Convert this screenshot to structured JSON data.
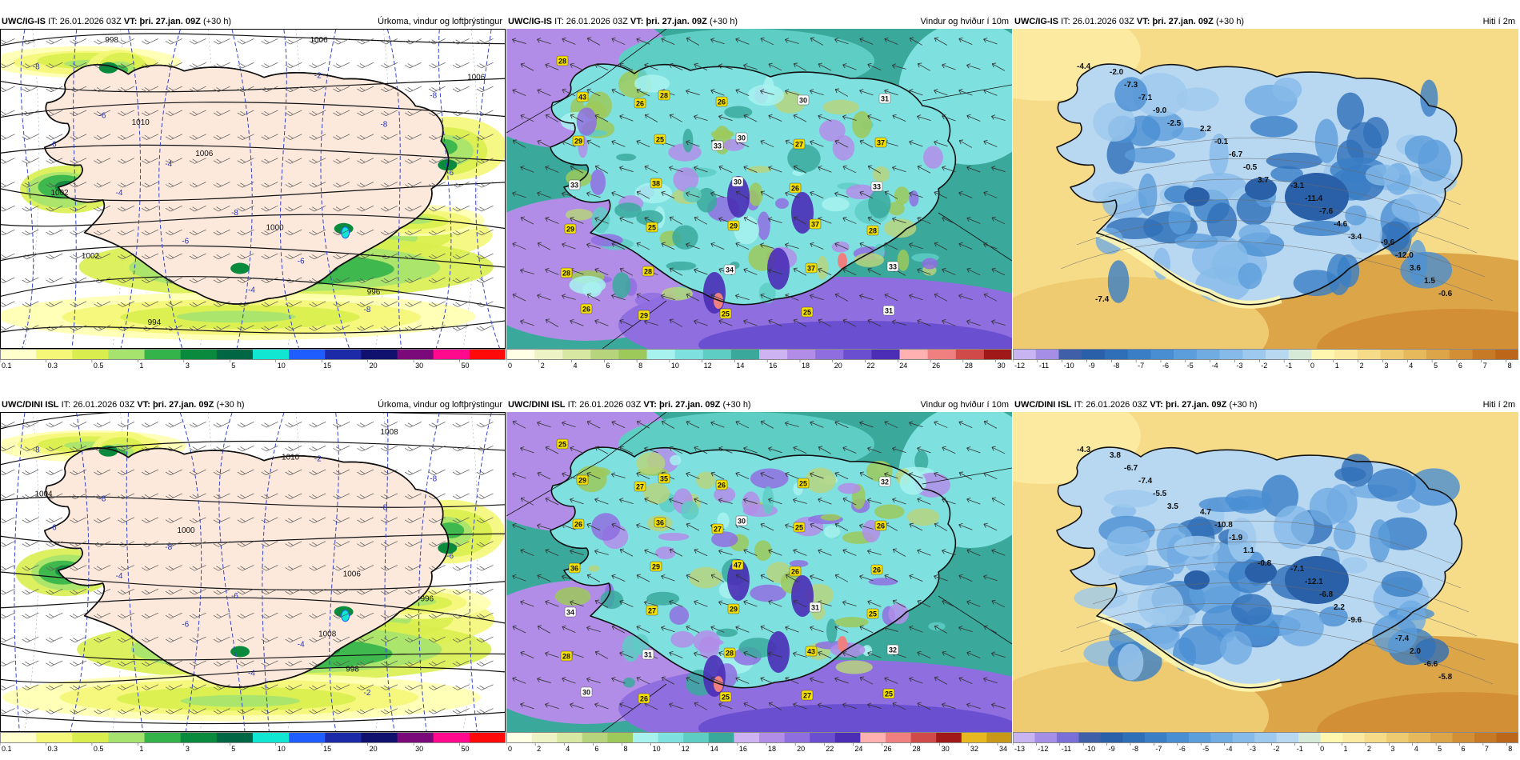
{
  "rows": [
    {
      "panels": [
        {
          "model": "UWC/IG-IS",
          "it_label": "IT:",
          "it_value": "26.01.2026 03Z",
          "vt_label": "VT:",
          "vt_value": "þri. 27.jan. 09Z",
          "lead": "(+30 h)",
          "title": "Úrkoma, vindur og loftþrýstingur",
          "colorbar": {
            "labels": [
              "0.1",
              "0.3",
              "0.5",
              "1",
              "3",
              "5",
              "10",
              "15",
              "20",
              "30",
              "50"
            ],
            "colors": [
              "#ffffcc",
              "#f4f777",
              "#d9ee4e",
              "#a6e36e",
              "#33b34a",
              "#0a8a3c",
              "#006644",
              "#11e6d2",
              "#1f5dff",
              "#1d2aa8",
              "#10106e",
              "#7a0a7a",
              "#ff0a8c",
              "#ff0a0a"
            ]
          },
          "map": {
            "kind": "precip",
            "isobar_labels": [
              "1006",
              "1006",
              "1010",
              "1006",
              "1002",
              "1000",
              "1002",
              "996",
              "994",
              "998"
            ],
            "temp_labels": [
              "-8",
              "-6",
              "-4",
              "-8",
              "-6",
              "-8",
              "-8",
              "-6",
              "-4",
              "-6",
              "-4",
              "-2",
              "-8",
              "-6"
            ]
          }
        },
        {
          "model": "UWC/IG-IS",
          "it_label": "IT:",
          "it_value": "26.01.2026 03Z",
          "vt_label": "VT:",
          "vt_value": "þri. 27.jan. 09Z",
          "lead": "(+30 h)",
          "title": "Vindur og hviður í 10m",
          "colorbar": {
            "labels": [
              "0",
              "2",
              "4",
              "6",
              "8",
              "10",
              "12",
              "14",
              "16",
              "18",
              "20",
              "22",
              "24",
              "26",
              "28",
              "30"
            ],
            "colors": [
              "#ffffe5",
              "#eef3c6",
              "#d6e8a2",
              "#b6d47c",
              "#9cc95a",
              "#a7f2ee",
              "#7fe0e0",
              "#5ecdc4",
              "#3aa99c",
              "#cdb3f2",
              "#b28de8",
              "#8f6ee0",
              "#6a4fd1",
              "#4b2db6",
              "#ffb0b0",
              "#f08080",
              "#d04a4a",
              "#a01818"
            ]
          },
          "map": {
            "kind": "wind",
            "gust_labels": [
              "28",
              "26",
              "33",
              "26",
              "28",
              "28",
              "29",
              "26",
              "27",
              "33",
              "29",
              "28",
              "25",
              "30",
              "37",
              "33",
              "25",
              "34",
              "25",
              "31",
              "29",
              "38",
              "29",
              "37",
              "31",
              "43",
              "25",
              "30",
              "37",
              "33",
              "26",
              "28",
              "30"
            ]
          }
        },
        {
          "model": "UWC/IG-IS",
          "it_label": "IT:",
          "it_value": "26.01.2026 03Z",
          "vt_label": "VT:",
          "vt_value": "þri. 27.jan. 09Z",
          "lead": "(+30 h)",
          "title": "Hiti í 2m",
          "colorbar": {
            "labels": [
              "-12",
              "-11",
              "-10",
              "-9",
              "-8",
              "-7",
              "-6",
              "-5",
              "-4",
              "-3",
              "-2",
              "-1",
              "0",
              "1",
              "2",
              "3",
              "4",
              "5",
              "6",
              "7",
              "8"
            ],
            "colors": [
              "#c8b4f0",
              "#a58ee6",
              "#3f5fa8",
              "#2a60a8",
              "#2f6fb8",
              "#3a7ec6",
              "#4a8ed2",
              "#5c9ddb",
              "#70abe2",
              "#86bae8",
              "#9ec9ee",
              "#b8d8f2",
              "#d6ead8",
              "#fff6b0",
              "#fbeaa0",
              "#f6db88",
              "#eecb70",
              "#e6b95c",
              "#dca548",
              "#d28f36",
              "#c77a26",
              "#bb6618"
            ]
          },
          "map": {
            "kind": "temp",
            "temp_labels": [
              "-4.4",
              "-2.5",
              "3.7",
              "-3.4",
              "-0.6",
              "-9.0",
              "-0.5",
              "-4.6",
              "1.5",
              "-7.1",
              "-6.7",
              "-7.6",
              "3.6",
              "-7.3",
              "-0.1",
              "-11.4",
              "-12.0",
              "-2.0",
              "2.2",
              "-3.1",
              "-9.6",
              "-7.4"
            ]
          }
        }
      ]
    },
    {
      "panels": [
        {
          "model": "UWC/DINI ISL",
          "it_label": "IT:",
          "it_value": "26.01.2026 03Z",
          "vt_label": "VT:",
          "vt_value": "þri. 27.jan. 09Z",
          "lead": "(+30 h)",
          "title": "Úrkoma, vindur og loftþrýstingur",
          "colorbar": {
            "labels": [
              "0.1",
              "0.3",
              "0.5",
              "1",
              "3",
              "5",
              "10",
              "15",
              "20",
              "30",
              "50"
            ],
            "colors": [
              "#ffffcc",
              "#f4f777",
              "#d9ee4e",
              "#a6e36e",
              "#33b34a",
              "#0a8a3c",
              "#006644",
              "#11e6d2",
              "#1f5dff",
              "#1d2aa8",
              "#10106e",
              "#7a0a7a",
              "#ff0a8c",
              "#ff0a0a"
            ]
          },
          "map": {
            "kind": "precip",
            "isobar_labels": [
              "1008",
              "1010",
              "1004",
              "1000",
              "1006",
              "996",
              "1008",
              "998"
            ],
            "temp_labels": [
              "-8",
              "-8",
              "-8",
              "-6",
              "-4",
              "-2",
              "-8",
              "-6",
              "-4",
              "-6",
              "-4",
              "-2",
              "-8",
              "-6"
            ]
          }
        },
        {
          "model": "UWC/DINI ISL",
          "it_label": "IT:",
          "it_value": "26.01.2026 03Z",
          "vt_label": "VT:",
          "vt_value": "þri. 27.jan. 09Z",
          "lead": "(+30 h)",
          "title": "Vindur og hviður í 10m",
          "colorbar": {
            "labels": [
              "0",
              "2",
              "4",
              "6",
              "8",
              "10",
              "12",
              "14",
              "16",
              "18",
              "20",
              "22",
              "24",
              "26",
              "28",
              "30",
              "32",
              "34"
            ],
            "colors": [
              "#ffffe5",
              "#eef3c6",
              "#d6e8a2",
              "#b6d47c",
              "#9cc95a",
              "#a7f2ee",
              "#7fe0e0",
              "#5ecdc4",
              "#3aa99c",
              "#cdb3f2",
              "#b28de8",
              "#8f6ee0",
              "#6a4fd1",
              "#4b2db6",
              "#ffb0b0",
              "#f08080",
              "#d04a4a",
              "#a01818",
              "#e8b820",
              "#c89818"
            ]
          },
          "map": {
            "kind": "wind",
            "gust_labels": [
              "25",
              "27",
              "27",
              "26",
              "25",
              "28",
              "26",
              "26",
              "25",
              "26",
              "34",
              "31",
              "25",
              "25",
              "26",
              "36",
              "27",
              "28",
              "27",
              "32",
              "26",
              "29",
              "29",
              "43",
              "25",
              "29",
              "36",
              "47",
              "31",
              "32",
              "30",
              "35",
              "30"
            ]
          }
        },
        {
          "model": "UWC/DINI ISL",
          "it_label": "IT:",
          "it_value": "26.01.2026 03Z",
          "vt_label": "VT:",
          "vt_value": "þri. 27.jan. 09Z",
          "lead": "(+30 h)",
          "title": "Hiti í 2m",
          "colorbar": {
            "labels": [
              "-13",
              "-12",
              "-11",
              "-10",
              "-9",
              "-8",
              "-7",
              "-6",
              "-5",
              "-4",
              "-3",
              "-2",
              "-1",
              "0",
              "1",
              "2",
              "3",
              "4",
              "5",
              "6",
              "7",
              "8"
            ],
            "colors": [
              "#c8b4f0",
              "#a58ee6",
              "#7a6fd6",
              "#3f5fa8",
              "#2a60a8",
              "#2f6fb8",
              "#3a7ec6",
              "#4a8ed2",
              "#5c9ddb",
              "#70abe2",
              "#86bae8",
              "#9ec9ee",
              "#b8d8f2",
              "#d6ead8",
              "#fff6b0",
              "#fbeaa0",
              "#f6db88",
              "#eecb70",
              "#e6b95c",
              "#dca548",
              "#d28f36",
              "#c77a26",
              "#bb6618"
            ]
          },
          "map": {
            "kind": "temp",
            "temp_labels": [
              "-4.3",
              "3.5",
              "-0.8",
              "-9.6",
              "-5.8",
              "-5.5",
              "1.1",
              "2.2",
              "-6.6",
              "-7.4",
              "-1.9",
              "-6.8",
              "2.0",
              "-6.7",
              "-10.8",
              "-12.1",
              "-7.4",
              "3.8",
              "4.7",
              "-7.1"
            ]
          }
        }
      ]
    }
  ]
}
